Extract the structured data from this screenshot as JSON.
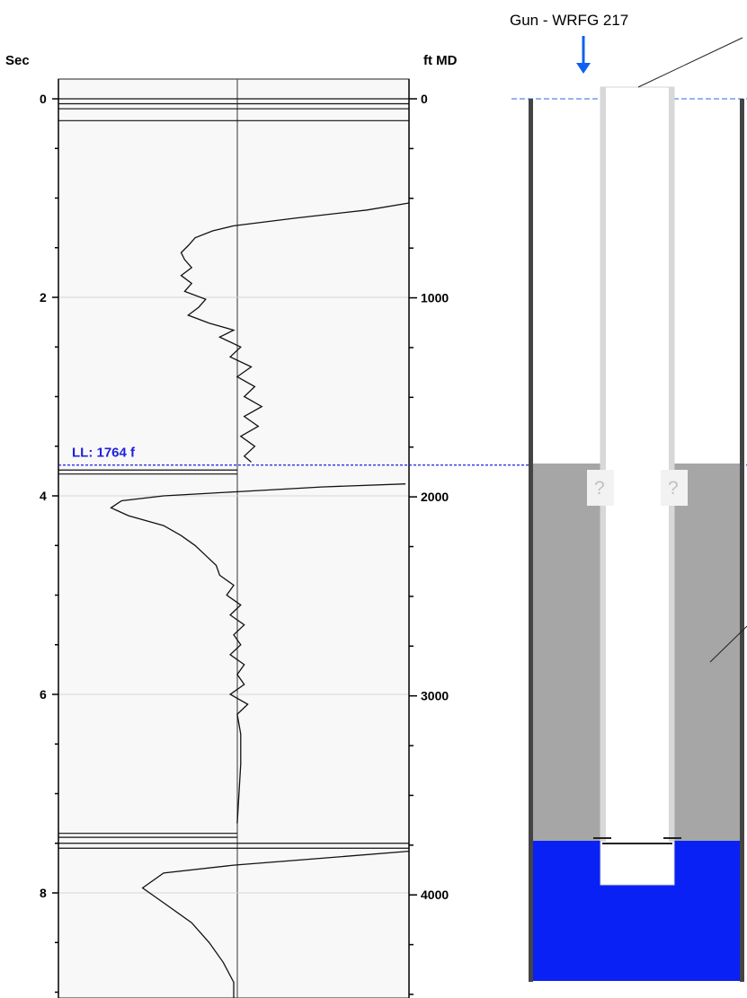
{
  "chart_data": {
    "type": "line",
    "left_axis": {
      "label": "Sec",
      "range": [
        0,
        9.3
      ],
      "ticks": [
        0,
        2,
        4,
        6,
        8
      ],
      "minor_step": 0.5
    },
    "right_axis": {
      "label": "ft MD",
      "range": [
        0,
        4647
      ],
      "ticks": [
        0,
        1000,
        2000,
        3000,
        4000
      ],
      "minor_step": 250
    },
    "liquid_level": {
      "label": "LL: 1764 f",
      "sec": 3.69,
      "ft_md": 1764,
      "color": "#1f1fe0"
    },
    "grid": true,
    "series": [
      {
        "points": [
          [
            1.05,
            1.0
          ],
          [
            1.12,
            0.88
          ],
          [
            1.2,
            0.68
          ],
          [
            1.28,
            0.5
          ],
          [
            1.33,
            0.44
          ],
          [
            1.4,
            0.39
          ],
          [
            1.48,
            0.37
          ],
          [
            1.55,
            0.35
          ],
          [
            1.62,
            0.36
          ],
          [
            1.7,
            0.38
          ],
          [
            1.78,
            0.35
          ],
          [
            1.86,
            0.38
          ],
          [
            1.94,
            0.36
          ],
          [
            2.02,
            0.42
          ],
          [
            2.1,
            0.4
          ],
          [
            2.18,
            0.37
          ],
          [
            2.26,
            0.43
          ],
          [
            2.33,
            0.5
          ],
          [
            2.4,
            0.46
          ],
          [
            2.5,
            0.52
          ],
          [
            2.6,
            0.49
          ],
          [
            2.7,
            0.55
          ],
          [
            2.8,
            0.51
          ],
          [
            2.9,
            0.56
          ],
          [
            3.0,
            0.53
          ],
          [
            3.1,
            0.58
          ],
          [
            3.2,
            0.53
          ],
          [
            3.3,
            0.57
          ],
          [
            3.4,
            0.52
          ],
          [
            3.5,
            0.56
          ],
          [
            3.6,
            0.53
          ],
          [
            3.66,
            0.55
          ]
        ]
      },
      {
        "points": [
          [
            3.88,
            0.99
          ],
          [
            3.91,
            0.75
          ],
          [
            3.96,
            0.5
          ],
          [
            4.0,
            0.3
          ],
          [
            4.05,
            0.18
          ],
          [
            4.12,
            0.15
          ],
          [
            4.2,
            0.2
          ],
          [
            4.3,
            0.3
          ],
          [
            4.4,
            0.35
          ],
          [
            4.5,
            0.39
          ],
          [
            4.6,
            0.42
          ],
          [
            4.7,
            0.45
          ],
          [
            4.8,
            0.46
          ],
          [
            4.9,
            0.5
          ],
          [
            5.0,
            0.48
          ],
          [
            5.1,
            0.52
          ],
          [
            5.2,
            0.49
          ],
          [
            5.3,
            0.53
          ],
          [
            5.4,
            0.5
          ],
          [
            5.5,
            0.52
          ],
          [
            5.6,
            0.49
          ],
          [
            5.7,
            0.53
          ],
          [
            5.8,
            0.51
          ],
          [
            5.9,
            0.53
          ],
          [
            6.0,
            0.49
          ],
          [
            6.1,
            0.54
          ],
          [
            6.2,
            0.51
          ],
          [
            6.4,
            0.52
          ],
          [
            6.7,
            0.52
          ],
          [
            7.3,
            0.51
          ]
        ]
      },
      {
        "points": [
          [
            7.58,
            1.0
          ],
          [
            7.66,
            0.72
          ],
          [
            7.72,
            0.5
          ],
          [
            7.8,
            0.3
          ],
          [
            7.95,
            0.24
          ],
          [
            8.1,
            0.3
          ],
          [
            8.3,
            0.38
          ],
          [
            8.5,
            0.43
          ],
          [
            8.7,
            0.47
          ],
          [
            8.9,
            0.5
          ],
          [
            9.1,
            0.5
          ],
          [
            9.3,
            0.5
          ]
        ]
      }
    ],
    "event_lines_sec": [
      0.0,
      0.05,
      0.1,
      0.22,
      3.74,
      3.78,
      7.4,
      7.44,
      7.5,
      7.55
    ],
    "wellbore": {
      "annotation": "Gun - WRFG 217",
      "unknown_marks": [
        "?",
        "?"
      ],
      "colors": {
        "annulus_liquid": "#a6a6a6",
        "bottom_fluid": "#0a21f5",
        "casing": "#444444",
        "tubing": "#d8d8d8"
      }
    }
  }
}
